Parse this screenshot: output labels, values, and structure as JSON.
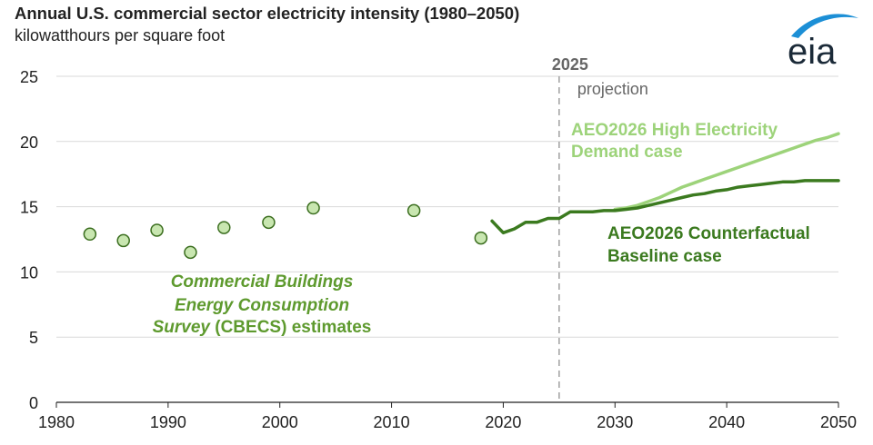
{
  "header": {
    "title": "Annual U.S. commercial sector electricity intensity (1980–2050)",
    "subtitle": "kilowatthours per square foot"
  },
  "logo": {
    "text": "eia"
  },
  "colors": {
    "light_green": "#9dd37a",
    "dark_green": "#3b7a1f",
    "marker_fill": "#c8e6b0",
    "marker_stroke": "#3b6e1f",
    "grid": "#d9d9d9",
    "annotation_green": "#5e9a2e",
    "divider": "#a6a6a6",
    "divider_text": "#666666"
  },
  "chart_data": {
    "type": "line",
    "xlim": [
      1980,
      2050
    ],
    "ylim": [
      0,
      25
    ],
    "xticks": [
      1980,
      1990,
      2000,
      2010,
      2020,
      2030,
      2040,
      2050
    ],
    "yticks": [
      0,
      5,
      10,
      15,
      20,
      25
    ],
    "grid": "horizontal",
    "divider": {
      "x": 2025,
      "label": "2025",
      "sublabel": "projection"
    },
    "scatter": {
      "name": "Commercial Buildings Energy Consumption Survey (CBECS) estimates",
      "label_lines": [
        {
          "italic": "Commercial Buildings",
          "plain": ""
        },
        {
          "italic": "Energy Consumption",
          "plain": ""
        },
        {
          "italic": "Survey",
          "plain": " (CBECS) estimates"
        }
      ],
      "points": [
        [
          1983,
          12.9
        ],
        [
          1986,
          12.4
        ],
        [
          1989,
          13.2
        ],
        [
          1992,
          11.5
        ],
        [
          1995,
          13.4
        ],
        [
          1999,
          13.8
        ],
        [
          2003,
          14.9
        ],
        [
          2012,
          14.7
        ],
        [
          2018,
          12.6
        ]
      ]
    },
    "series": [
      {
        "name": "AEO2026 High Electricity Demand case",
        "label_lines": [
          "AEO2026 High Electricity",
          "Demand case"
        ],
        "color": "#9dd37a",
        "x": [
          2030,
          2031,
          2032,
          2033,
          2034,
          2035,
          2036,
          2037,
          2038,
          2039,
          2040,
          2041,
          2042,
          2043,
          2044,
          2045,
          2046,
          2047,
          2048,
          2049,
          2050
        ],
        "values": [
          14.8,
          14.9,
          15.1,
          15.4,
          15.7,
          16.1,
          16.5,
          16.8,
          17.1,
          17.4,
          17.7,
          18.0,
          18.3,
          18.6,
          18.9,
          19.2,
          19.5,
          19.8,
          20.1,
          20.3,
          20.6
        ]
      },
      {
        "name": "AEO2026 Counterfactual Baseline case",
        "label_lines": [
          "AEO2026 Counterfactual",
          "Baseline case"
        ],
        "color": "#3b7a1f",
        "x": [
          2019,
          2020,
          2021,
          2022,
          2023,
          2024,
          2025,
          2026,
          2027,
          2028,
          2029,
          2030,
          2031,
          2032,
          2033,
          2034,
          2035,
          2036,
          2037,
          2038,
          2039,
          2040,
          2041,
          2042,
          2043,
          2044,
          2045,
          2046,
          2047,
          2048,
          2049,
          2050
        ],
        "values": [
          13.9,
          13.0,
          13.3,
          13.8,
          13.8,
          14.1,
          14.1,
          14.6,
          14.6,
          14.6,
          14.7,
          14.7,
          14.8,
          14.9,
          15.1,
          15.3,
          15.5,
          15.7,
          15.9,
          16.0,
          16.2,
          16.3,
          16.5,
          16.6,
          16.7,
          16.8,
          16.9,
          16.9,
          17.0,
          17.0,
          17.0,
          17.0
        ]
      }
    ]
  }
}
